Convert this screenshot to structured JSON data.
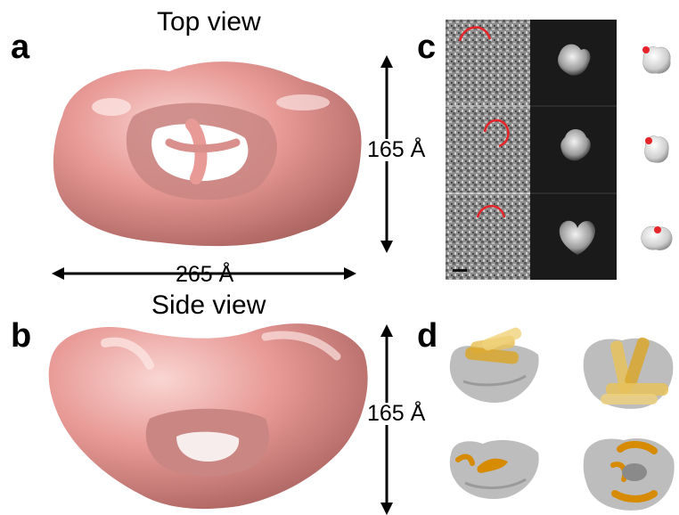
{
  "figure": {
    "panels": {
      "a": {
        "letter": "a",
        "title": "Top view",
        "height_label": "165 Å",
        "width_label": "265 Å"
      },
      "b": {
        "letter": "b",
        "title": "Side view",
        "height_label": "165 Å"
      },
      "c": {
        "letter": "c"
      },
      "d": {
        "letter": "d"
      }
    },
    "colors": {
      "density_map": "#e89a96",
      "density_highlight": "#f7cfcc",
      "density_shadow": "#b96e6b",
      "gray_map": "#bfbfbf",
      "helix": "#e8c25a",
      "marker": "#e5252a",
      "annotation_arc": "#e5252a",
      "em_background": "#1a1a1a"
    }
  }
}
